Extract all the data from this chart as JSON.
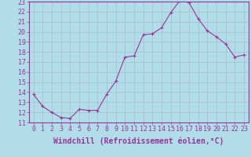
{
  "x": [
    0,
    1,
    2,
    3,
    4,
    5,
    6,
    7,
    8,
    9,
    10,
    11,
    12,
    13,
    14,
    15,
    16,
    17,
    18,
    19,
    20,
    21,
    22,
    23
  ],
  "y": [
    13.8,
    12.6,
    12.0,
    11.5,
    11.4,
    12.3,
    12.2,
    12.2,
    13.8,
    15.1,
    17.5,
    17.6,
    19.7,
    19.8,
    20.4,
    21.9,
    23.1,
    22.9,
    21.3,
    20.1,
    19.5,
    18.8,
    17.5,
    17.7
  ],
  "line_color": "#993399",
  "marker": "+",
  "bg_color": "#b0dde8",
  "grid_color": "#aabbcc",
  "text_color": "#993399",
  "xlabel": "Windchill (Refroidissement éolien,°C)",
  "ylim": [
    11,
    23
  ],
  "xlim": [
    -0.5,
    23.5
  ],
  "yticks": [
    11,
    12,
    13,
    14,
    15,
    16,
    17,
    18,
    19,
    20,
    21,
    22,
    23
  ],
  "xticks": [
    0,
    1,
    2,
    3,
    4,
    5,
    6,
    7,
    8,
    9,
    10,
    11,
    12,
    13,
    14,
    15,
    16,
    17,
    18,
    19,
    20,
    21,
    22,
    23
  ],
  "font_size": 6,
  "xlabel_fontsize": 7
}
